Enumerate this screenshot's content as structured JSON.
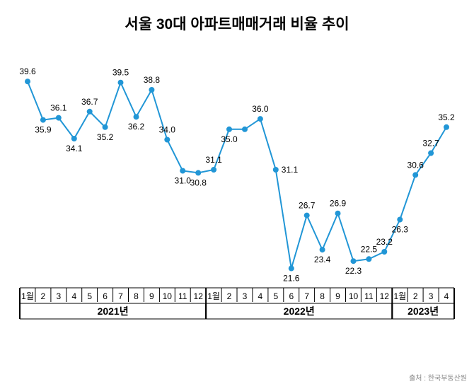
{
  "chart": {
    "type": "line",
    "title": "서울 30대 아파트매매거래 비율 추이",
    "title_fontsize": 21,
    "title_fontweight": "bold",
    "title_color": "#000000",
    "source": "출처 : 한국부동산원",
    "source_fontsize": 10,
    "source_color": "#888888",
    "background_color": "#ffffff",
    "line_color": "#2196d6",
    "marker_color": "#2196d6",
    "line_width": 2,
    "marker_radius": 4,
    "label_color": "#000000",
    "label_fontsize": 12,
    "axis_color": "#000000",
    "axis_label_fontsize": 12,
    "year_label_fontsize": 14,
    "year_label_fontweight": "bold",
    "ylim": [
      20,
      42
    ],
    "year_groups": [
      {
        "label": "2021년",
        "months": [
          "1월",
          "2",
          "3",
          "4",
          "5",
          "6",
          "7",
          "8",
          "9",
          "10",
          "11",
          "12"
        ]
      },
      {
        "label": "2022년",
        "months": [
          "1월",
          "2",
          "3",
          "4",
          "5",
          "6",
          "7",
          "8",
          "9",
          "10",
          "11",
          "12"
        ]
      },
      {
        "label": "2023년",
        "months": [
          "1월",
          "2",
          "3",
          "4"
        ]
      }
    ],
    "values": [
      39.6,
      35.9,
      36.1,
      34.1,
      36.7,
      35.2,
      39.5,
      36.2,
      38.8,
      34.0,
      31.0,
      30.8,
      31.1,
      35.0,
      35.0,
      36.0,
      31.1,
      21.6,
      26.7,
      23.4,
      26.9,
      22.3,
      22.5,
      23.2,
      26.3,
      30.6,
      32.7,
      35.2
    ],
    "label_positions": [
      "above",
      "below",
      "above",
      "below",
      "above",
      "below",
      "above",
      "below",
      "above",
      "above",
      "below",
      "below",
      "above",
      "below",
      "skip",
      "above",
      "right",
      "below",
      "above",
      "below",
      "above",
      "below",
      "above",
      "above",
      "below",
      "above",
      "above",
      "above"
    ]
  }
}
